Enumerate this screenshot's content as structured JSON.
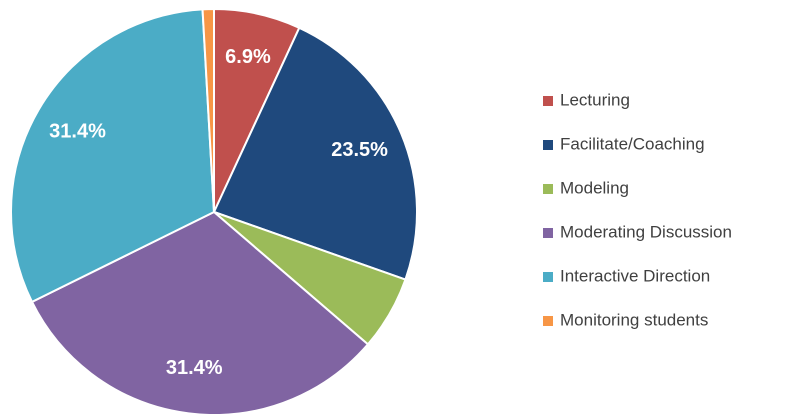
{
  "chart_data": {
    "type": "pie",
    "categories": [
      "Lecturing",
      "Facilitate/Coaching",
      "Modeling",
      "Moderating Discussion",
      "Interactive Direction",
      "Monitoring students"
    ],
    "values": [
      6.9,
      23.5,
      5.9,
      31.4,
      31.4,
      0.9
    ],
    "value_labels": [
      "6.9%",
      "23.5%",
      null,
      "31.4%",
      "31.4%",
      null
    ],
    "colors": [
      "#c0504d",
      "#1f497d",
      "#9bbb59",
      "#8064a2",
      "#4bacc6",
      "#f79646"
    ],
    "legend": "right"
  }
}
